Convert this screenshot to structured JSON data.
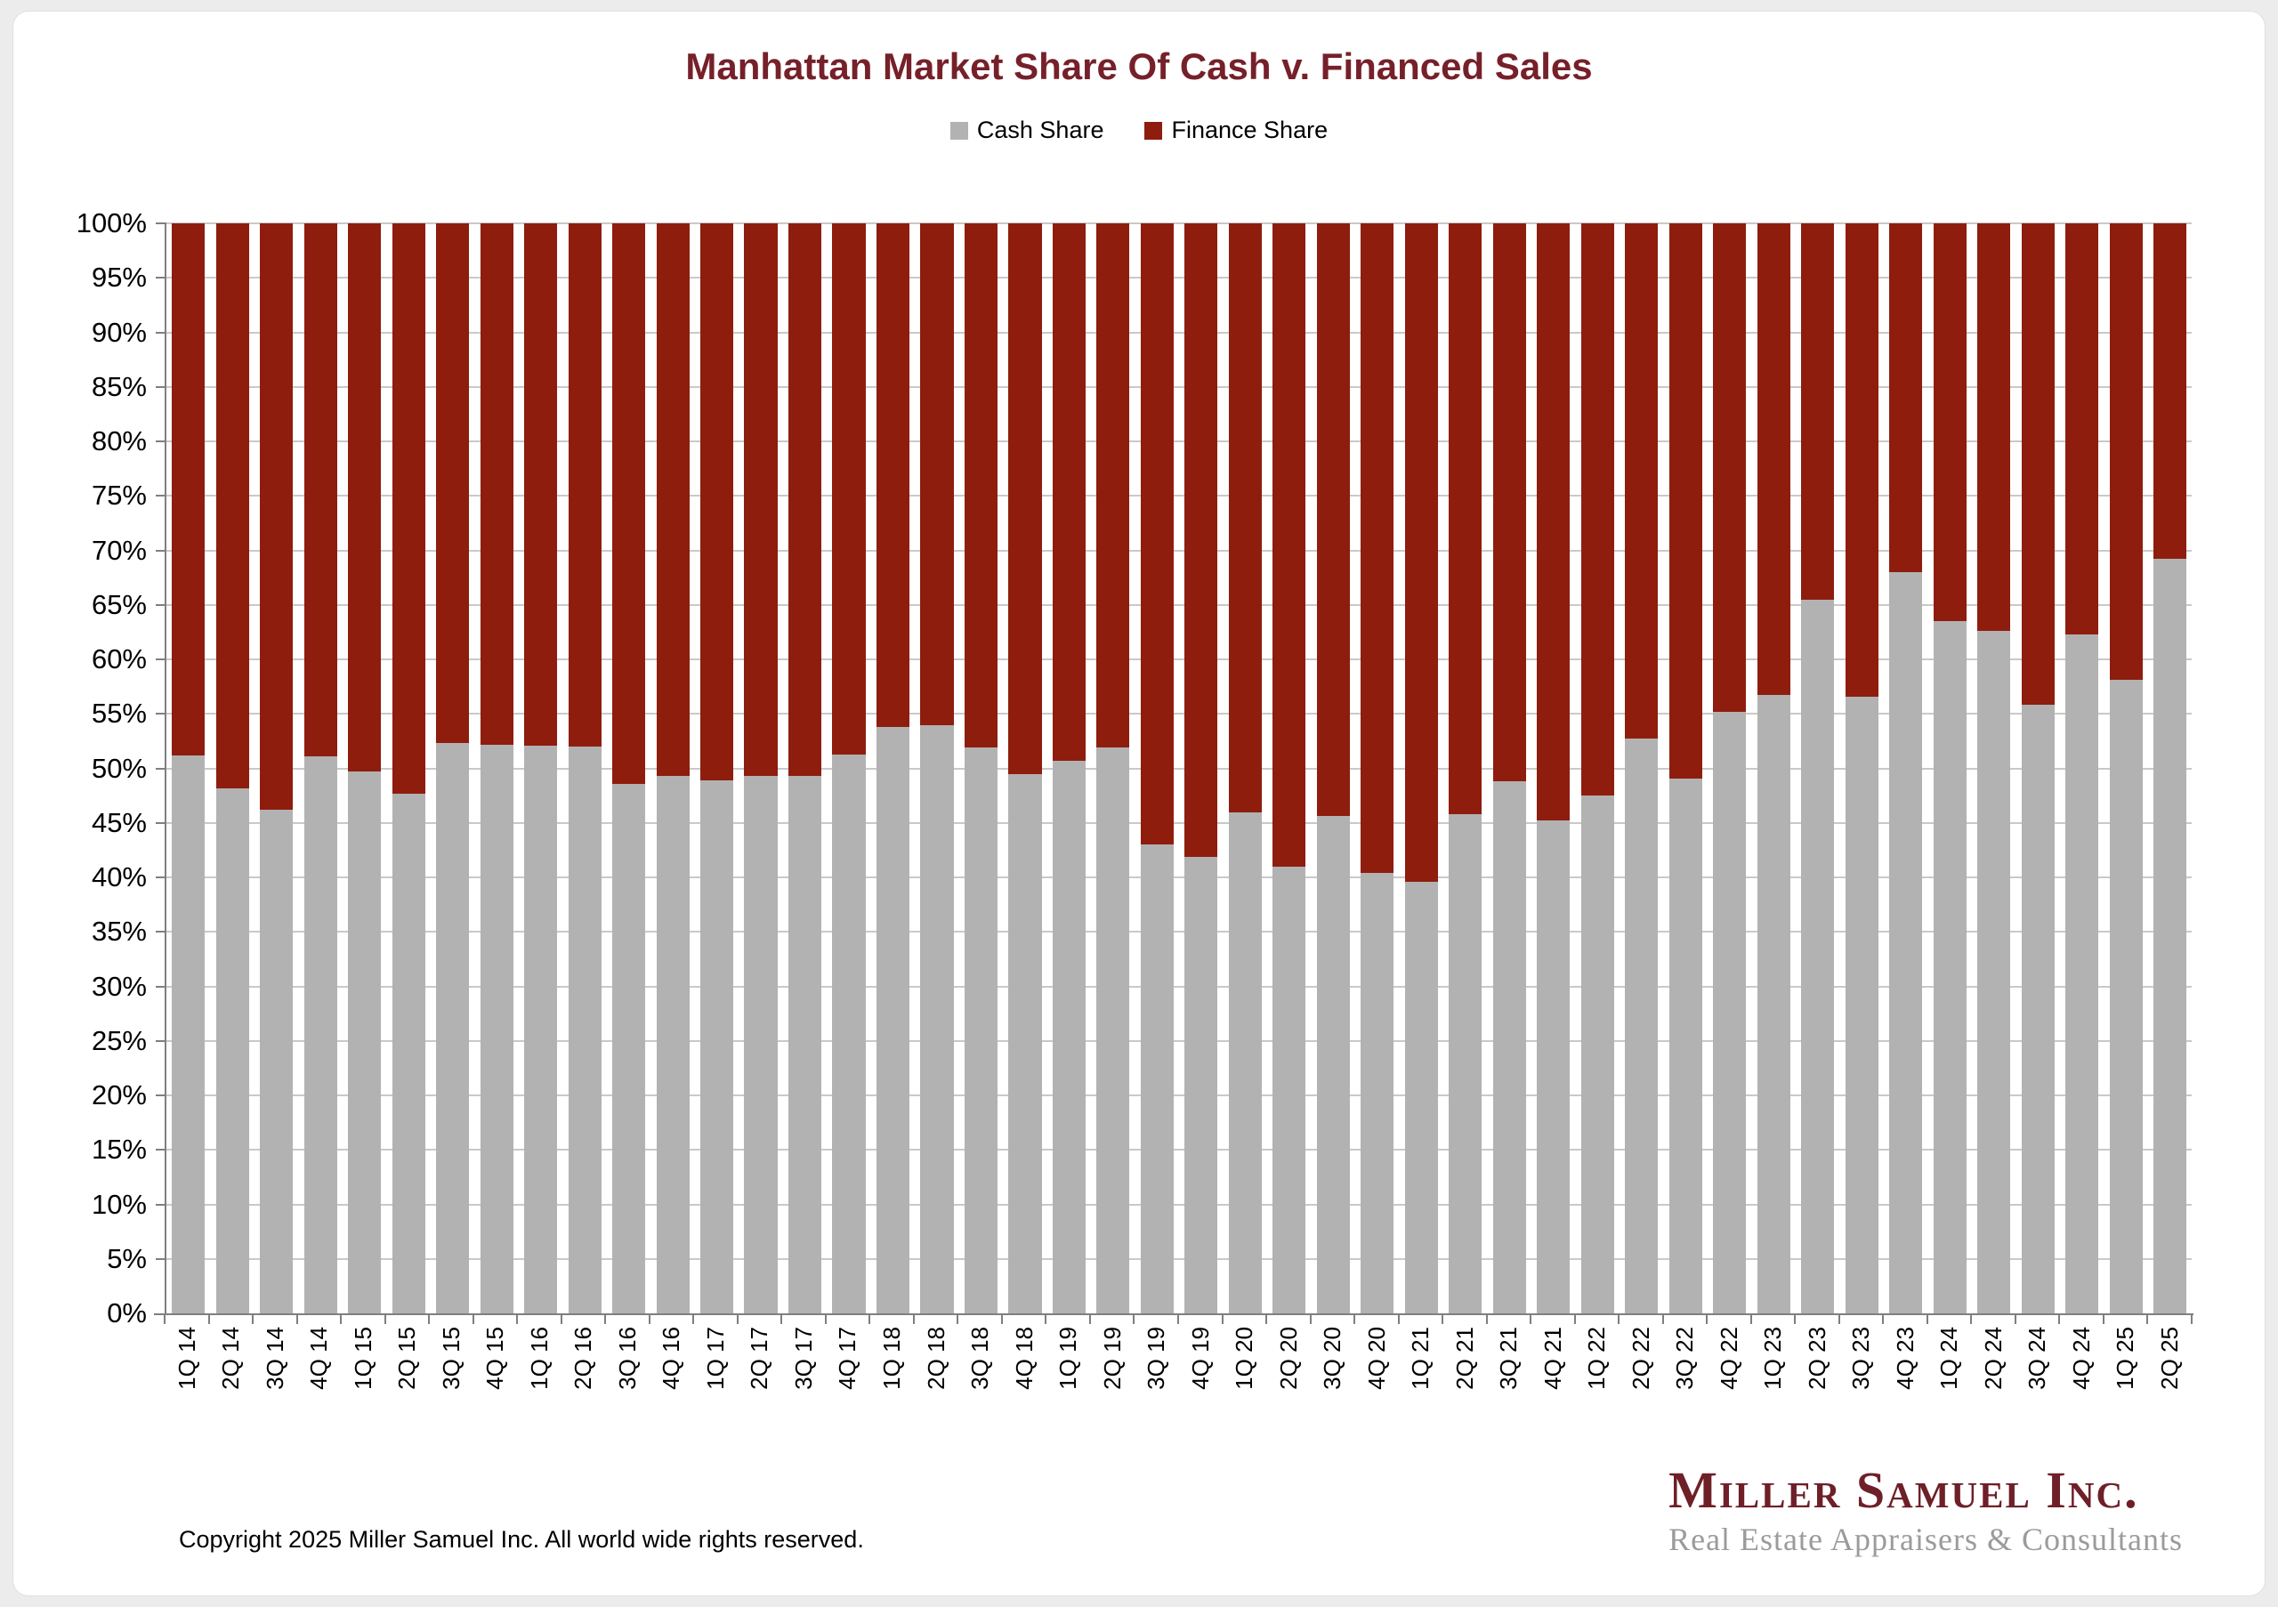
{
  "title": "Manhattan Market Share Of Cash v. Financed Sales",
  "legend": {
    "cash_label": "Cash Share",
    "finance_label": "Finance Share"
  },
  "footer": {
    "copyright": "Copyright 2025 Miller Samuel Inc.  All world wide rights reserved."
  },
  "logo": {
    "name": "Miller Samuel Inc.",
    "tagline": "Real Estate Appraisers & Consultants"
  },
  "colors": {
    "cash": "#b2b2b2",
    "finance": "#8e1d0e",
    "title": "#76202a",
    "logo_main": "#6e1f28",
    "logo_sub": "#9b9b9b",
    "gridline": "#c9c9c9",
    "axis": "#7f7f7f"
  },
  "chart_data": {
    "type": "bar",
    "stacked": true,
    "title": "Manhattan Market Share Of Cash v. Financed Sales",
    "xlabel": "",
    "ylabel": "",
    "ylim": [
      0,
      100
    ],
    "y_tick_step": 5,
    "y_tick_labels": [
      "0%",
      "5%",
      "10%",
      "15%",
      "20%",
      "25%",
      "30%",
      "35%",
      "40%",
      "45%",
      "50%",
      "55%",
      "60%",
      "65%",
      "70%",
      "75%",
      "80%",
      "85%",
      "90%",
      "95%",
      "100%"
    ],
    "grid": true,
    "legend_position": "top",
    "categories": [
      "1Q 14",
      "2Q 14",
      "3Q 14",
      "4Q 14",
      "1Q 15",
      "2Q 15",
      "3Q 15",
      "4Q 15",
      "1Q 16",
      "2Q 16",
      "3Q 16",
      "4Q 16",
      "1Q 17",
      "2Q 17",
      "3Q 17",
      "4Q 17",
      "1Q 18",
      "2Q 18",
      "3Q 18",
      "4Q 18",
      "1Q 19",
      "2Q 19",
      "3Q 19",
      "4Q 19",
      "1Q 20",
      "2Q 20",
      "3Q 20",
      "4Q 20",
      "1Q 21",
      "2Q 21",
      "3Q 21",
      "4Q 21",
      "1Q 22",
      "2Q 22",
      "3Q 22",
      "4Q 22",
      "1Q 23",
      "2Q 23",
      "3Q 23",
      "4Q 23",
      "1Q 24",
      "2Q 24",
      "3Q 24",
      "4Q 24",
      "1Q 25",
      "2Q 25"
    ],
    "series": [
      {
        "name": "Cash Share",
        "values": [
          51.2,
          48.2,
          46.2,
          51.1,
          49.7,
          47.7,
          52.3,
          52.2,
          52.1,
          52.0,
          48.6,
          49.3,
          48.9,
          49.3,
          49.3,
          51.3,
          53.8,
          54.0,
          51.9,
          49.5,
          50.7,
          51.9,
          43.0,
          41.9,
          46.0,
          41.0,
          45.6,
          40.4,
          39.6,
          45.8,
          48.8,
          45.2,
          47.5,
          52.7,
          49.1,
          55.2,
          56.7,
          65.5,
          56.6,
          68.0,
          63.5,
          62.6,
          55.8,
          62.3,
          58.1,
          69.2
        ]
      },
      {
        "name": "Finance Share",
        "values": [
          48.8,
          51.8,
          53.8,
          48.9,
          50.3,
          52.3,
          47.7,
          47.8,
          47.9,
          48.0,
          51.4,
          50.7,
          51.1,
          50.7,
          50.7,
          48.7,
          46.2,
          46.0,
          48.1,
          50.5,
          49.3,
          48.1,
          57.0,
          58.1,
          54.0,
          59.0,
          54.4,
          59.6,
          60.4,
          54.2,
          51.2,
          54.8,
          52.5,
          47.3,
          50.9,
          44.8,
          43.3,
          34.5,
          43.4,
          32.0,
          36.5,
          37.4,
          44.2,
          37.7,
          41.9,
          30.8
        ]
      }
    ]
  }
}
